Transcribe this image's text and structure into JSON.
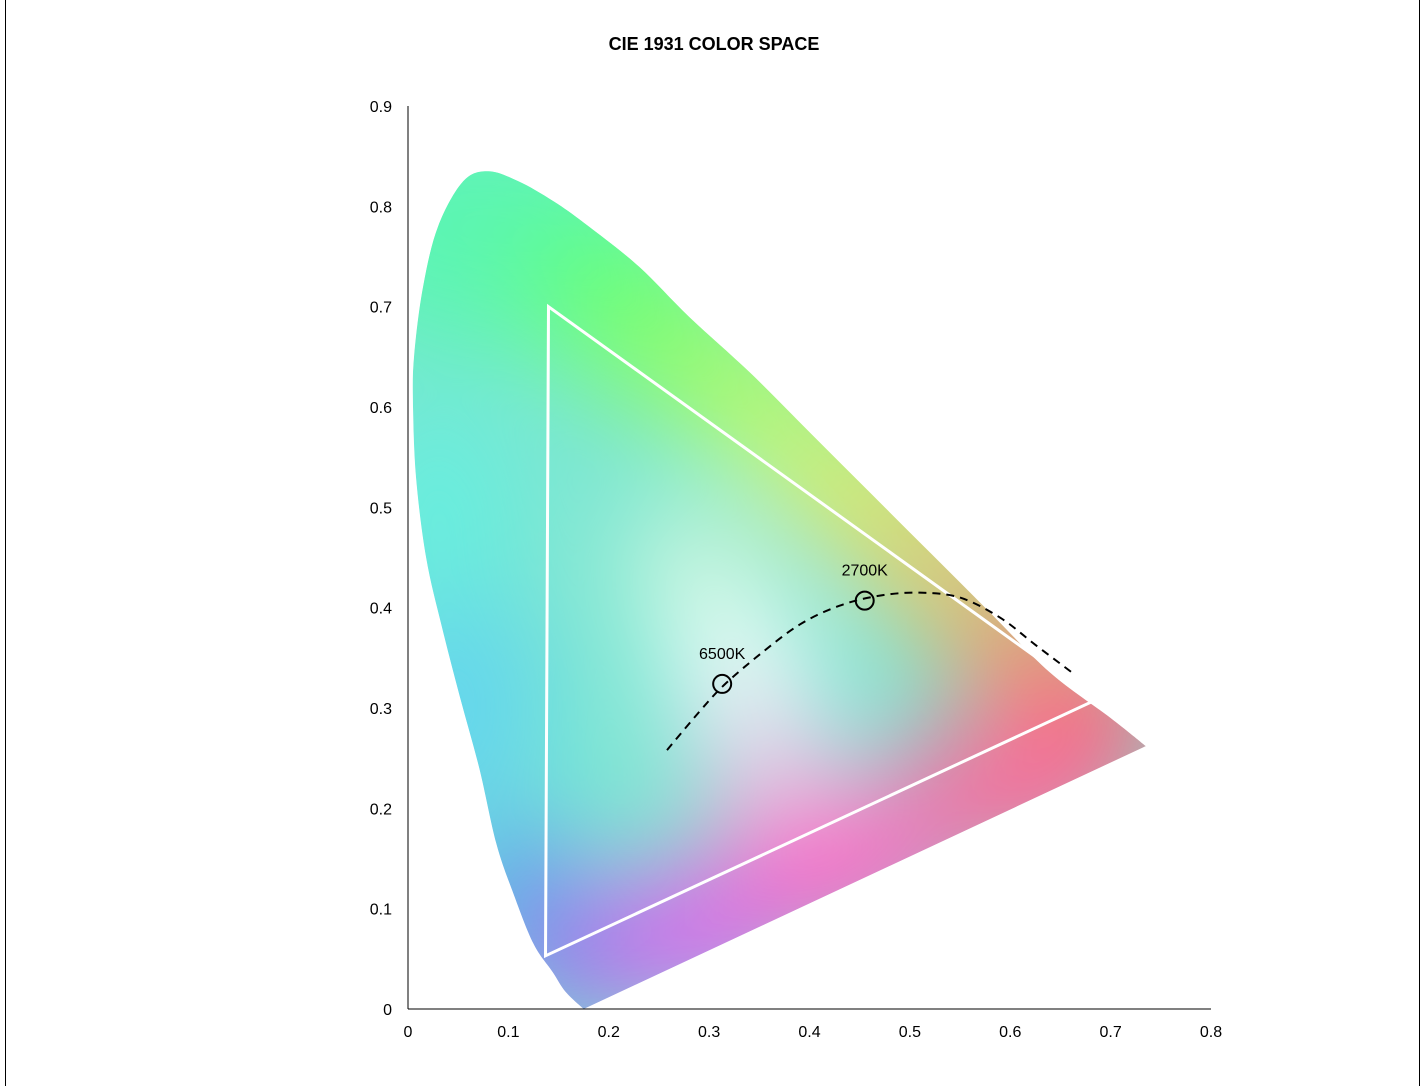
{
  "chart_data": {
    "type": "scatter",
    "title": "CIE 1931 COLOR SPACE",
    "xlabel": "",
    "ylabel": "",
    "xlim": [
      0,
      0.8
    ],
    "ylim": [
      0,
      0.9
    ],
    "xticks": [
      "0",
      "0.1",
      "0.2",
      "0.3",
      "0.4",
      "0.5",
      "0.6",
      "0.7",
      "0.8"
    ],
    "yticks": [
      "0",
      "0.1",
      "0.2",
      "0.3",
      "0.4",
      "0.5",
      "0.6",
      "0.7",
      "0.8",
      "0.9"
    ],
    "grid": false,
    "spectral_locus": [
      [
        0.175,
        0.0
      ],
      [
        0.157,
        0.017
      ],
      [
        0.144,
        0.037
      ],
      [
        0.125,
        0.065
      ],
      [
        0.105,
        0.115
      ],
      [
        0.088,
        0.165
      ],
      [
        0.071,
        0.24
      ],
      [
        0.052,
        0.31
      ],
      [
        0.034,
        0.38
      ],
      [
        0.018,
        0.45
      ],
      [
        0.008,
        0.53
      ],
      [
        0.005,
        0.6
      ],
      [
        0.006,
        0.65
      ],
      [
        0.015,
        0.72
      ],
      [
        0.03,
        0.78
      ],
      [
        0.055,
        0.825
      ],
      [
        0.08,
        0.835
      ],
      [
        0.11,
        0.825
      ],
      [
        0.145,
        0.805
      ],
      [
        0.18,
        0.78
      ],
      [
        0.23,
        0.74
      ],
      [
        0.28,
        0.69
      ],
      [
        0.34,
        0.635
      ],
      [
        0.4,
        0.575
      ],
      [
        0.46,
        0.515
      ],
      [
        0.52,
        0.455
      ],
      [
        0.58,
        0.395
      ],
      [
        0.64,
        0.335
      ],
      [
        0.7,
        0.29
      ],
      [
        0.735,
        0.262
      ]
    ],
    "gamut_triangle": [
      [
        0.14,
        0.7
      ],
      [
        0.685,
        0.308
      ],
      [
        0.137,
        0.053
      ]
    ],
    "planckian_locus": [
      [
        0.258,
        0.258
      ],
      [
        0.29,
        0.296
      ],
      [
        0.315,
        0.323
      ],
      [
        0.35,
        0.353
      ],
      [
        0.39,
        0.383
      ],
      [
        0.43,
        0.402
      ],
      [
        0.47,
        0.412
      ],
      [
        0.51,
        0.415
      ],
      [
        0.55,
        0.41
      ],
      [
        0.59,
        0.39
      ],
      [
        0.625,
        0.363
      ],
      [
        0.662,
        0.335
      ]
    ],
    "points": [
      {
        "label": "6500K",
        "x": 0.313,
        "y": 0.324
      },
      {
        "label": "2700K",
        "x": 0.455,
        "y": 0.407
      }
    ]
  }
}
